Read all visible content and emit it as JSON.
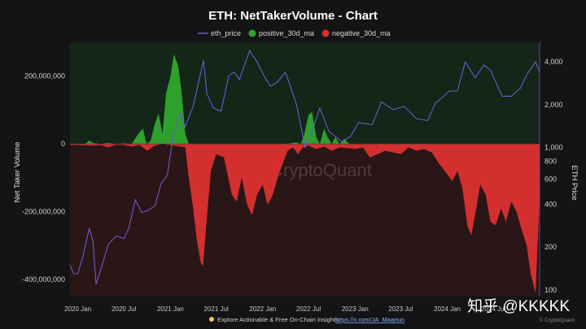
{
  "chart_data": {
    "type": "area",
    "title": "ETH: NetTakerVolume - Chart",
    "legend": {
      "placement": "top-center",
      "entries": [
        {
          "key": "eth_price",
          "label": "eth_price",
          "color": "#6a5acd",
          "style": "line"
        },
        {
          "key": "positive",
          "label": "positive_30d_ma",
          "color": "#2ea02c",
          "style": "dot"
        },
        {
          "key": "negative",
          "label": "negative_30d_ma",
          "color": "#d32f2f",
          "style": "dot"
        }
      ]
    },
    "x_axis": {
      "type": "date",
      "range": [
        "2019-12-01",
        "2024-12-31"
      ],
      "ticks": [
        {
          "date": "2020-01-01",
          "label": "2020 Jan"
        },
        {
          "date": "2020-07-01",
          "label": "2020 Jul"
        },
        {
          "date": "2021-01-01",
          "label": "2021 Jan"
        },
        {
          "date": "2021-07-01",
          "label": "2021 Jul"
        },
        {
          "date": "2022-01-01",
          "label": "2022 Jan"
        },
        {
          "date": "2022-07-01",
          "label": "2022 Jul"
        },
        {
          "date": "2023-01-01",
          "label": "2023 Jan"
        },
        {
          "date": "2023-07-01",
          "label": "2023 Jul"
        },
        {
          "date": "2024-01-01",
          "label": "2024 Jan"
        },
        {
          "date": "2024-07-01",
          "label": "2024 Jul"
        }
      ]
    },
    "y_left": {
      "label": "Net Taker Volume",
      "range": [
        -450000000,
        300000000
      ],
      "ticks": [
        {
          "value": 200000000,
          "label": "200,000,000"
        },
        {
          "value": 0,
          "label": "0"
        },
        {
          "value": -200000000,
          "label": "-200,000,000"
        },
        {
          "value": -400000000,
          "label": "-400,000,000"
        }
      ]
    },
    "y_right": {
      "label": "ETH Price",
      "scale": "log",
      "range": [
        90,
        5500
      ],
      "ticks": [
        {
          "value": 4000,
          "label": "4,000"
        },
        {
          "value": 2000,
          "label": "2,000"
        },
        {
          "value": 1000,
          "label": "1,000"
        },
        {
          "value": 800,
          "label": "800"
        },
        {
          "value": 600,
          "label": "600"
        },
        {
          "value": 400,
          "label": "400"
        },
        {
          "value": 200,
          "label": "200"
        },
        {
          "value": 100,
          "label": "100"
        }
      ]
    },
    "positive_30d_ma": [
      [
        "2019-12-01",
        0
      ],
      [
        "2020-01-01",
        0
      ],
      [
        "2020-02-01",
        1000000
      ],
      [
        "2020-02-15",
        10000000
      ],
      [
        "2020-03-01",
        3000000
      ],
      [
        "2020-04-01",
        0
      ],
      [
        "2020-05-01",
        3000000
      ],
      [
        "2020-06-01",
        0
      ],
      [
        "2020-07-01",
        2000000
      ],
      [
        "2020-08-01",
        0
      ],
      [
        "2020-09-01",
        35000000
      ],
      [
        "2020-09-15",
        45000000
      ],
      [
        "2020-09-25",
        10000000
      ],
      [
        "2020-10-01",
        0
      ],
      [
        "2020-10-15",
        10000000
      ],
      [
        "2020-11-01",
        60000000
      ],
      [
        "2020-11-15",
        90000000
      ],
      [
        "2020-12-01",
        30000000
      ],
      [
        "2020-12-15",
        150000000
      ],
      [
        "2021-01-01",
        200000000
      ],
      [
        "2021-01-15",
        265000000
      ],
      [
        "2021-02-01",
        230000000
      ],
      [
        "2021-02-15",
        150000000
      ],
      [
        "2021-03-01",
        30000000
      ],
      [
        "2021-03-15",
        0
      ],
      [
        "2021-04-01",
        0
      ],
      [
        "2021-09-01",
        0
      ],
      [
        "2022-04-01",
        0
      ],
      [
        "2022-05-15",
        5000000
      ],
      [
        "2022-06-01",
        0
      ],
      [
        "2022-06-15",
        30000000
      ],
      [
        "2022-07-01",
        85000000
      ],
      [
        "2022-07-15",
        95000000
      ],
      [
        "2022-08-01",
        20000000
      ],
      [
        "2022-08-15",
        0
      ],
      [
        "2022-09-01",
        45000000
      ],
      [
        "2022-09-15",
        20000000
      ],
      [
        "2022-10-01",
        0
      ],
      [
        "2022-10-15",
        20000000
      ],
      [
        "2022-11-01",
        0
      ],
      [
        "2022-11-20",
        15000000
      ],
      [
        "2022-12-10",
        0
      ],
      [
        "2024-12-31",
        0
      ]
    ],
    "negative_30d_ma": [
      [
        "2019-12-01",
        -3000000
      ],
      [
        "2020-01-01",
        -3000000
      ],
      [
        "2020-02-01",
        -4000000
      ],
      [
        "2020-03-01",
        -5000000
      ],
      [
        "2020-04-01",
        -3000000
      ],
      [
        "2020-05-01",
        -10000000
      ],
      [
        "2020-06-01",
        -2000000
      ],
      [
        "2020-07-01",
        -3000000
      ],
      [
        "2020-08-01",
        -8000000
      ],
      [
        "2020-09-01",
        -3000000
      ],
      [
        "2020-10-01",
        -20000000
      ],
      [
        "2020-11-01",
        -5000000
      ],
      [
        "2020-12-01",
        0
      ],
      [
        "2021-03-01",
        -10000000
      ],
      [
        "2021-03-15",
        -100000000
      ],
      [
        "2021-04-01",
        -190000000
      ],
      [
        "2021-04-15",
        -280000000
      ],
      [
        "2021-05-01",
        -350000000
      ],
      [
        "2021-05-10",
        -360000000
      ],
      [
        "2021-05-25",
        -220000000
      ],
      [
        "2021-06-10",
        -80000000
      ],
      [
        "2021-07-01",
        -30000000
      ],
      [
        "2021-08-01",
        -40000000
      ],
      [
        "2021-09-01",
        -150000000
      ],
      [
        "2021-09-20",
        -170000000
      ],
      [
        "2021-10-10",
        -100000000
      ],
      [
        "2021-11-01",
        -180000000
      ],
      [
        "2021-11-20",
        -210000000
      ],
      [
        "2021-12-10",
        -150000000
      ],
      [
        "2022-01-01",
        -120000000
      ],
      [
        "2022-01-20",
        -180000000
      ],
      [
        "2022-02-10",
        -150000000
      ],
      [
        "2022-03-01",
        -100000000
      ],
      [
        "2022-03-20",
        -60000000
      ],
      [
        "2022-04-10",
        -20000000
      ],
      [
        "2022-05-01",
        -10000000
      ],
      [
        "2022-05-20",
        -30000000
      ],
      [
        "2022-06-10",
        -10000000
      ],
      [
        "2022-07-01",
        -5000000
      ],
      [
        "2022-08-01",
        -15000000
      ],
      [
        "2022-09-01",
        -8000000
      ],
      [
        "2022-10-01",
        -20000000
      ],
      [
        "2022-11-01",
        -10000000
      ],
      [
        "2022-12-01",
        -12000000
      ],
      [
        "2023-01-01",
        -15000000
      ],
      [
        "2023-02-01",
        -10000000
      ],
      [
        "2023-03-01",
        -40000000
      ],
      [
        "2023-04-01",
        -30000000
      ],
      [
        "2023-05-01",
        -20000000
      ],
      [
        "2023-06-01",
        -25000000
      ],
      [
        "2023-07-01",
        -30000000
      ],
      [
        "2023-08-01",
        -10000000
      ],
      [
        "2023-09-01",
        -20000000
      ],
      [
        "2023-10-01",
        -15000000
      ],
      [
        "2023-11-01",
        -25000000
      ],
      [
        "2023-12-01",
        -60000000
      ],
      [
        "2024-01-01",
        -90000000
      ],
      [
        "2024-01-20",
        -110000000
      ],
      [
        "2024-02-10",
        -80000000
      ],
      [
        "2024-03-01",
        -130000000
      ],
      [
        "2024-03-20",
        -240000000
      ],
      [
        "2024-04-05",
        -270000000
      ],
      [
        "2024-04-20",
        -210000000
      ],
      [
        "2024-05-10",
        -120000000
      ],
      [
        "2024-06-01",
        -150000000
      ],
      [
        "2024-06-20",
        -230000000
      ],
      [
        "2024-07-10",
        -240000000
      ],
      [
        "2024-08-01",
        -190000000
      ],
      [
        "2024-08-20",
        -230000000
      ],
      [
        "2024-09-10",
        -170000000
      ],
      [
        "2024-10-01",
        -200000000
      ],
      [
        "2024-10-20",
        -250000000
      ],
      [
        "2024-11-10",
        -300000000
      ],
      [
        "2024-11-25",
        -380000000
      ],
      [
        "2024-12-15",
        -440000000
      ],
      [
        "2024-12-31",
        -160000000
      ]
    ],
    "eth_price": [
      [
        "2019-12-01",
        150
      ],
      [
        "2019-12-15",
        130
      ],
      [
        "2020-01-01",
        130
      ],
      [
        "2020-01-20",
        170
      ],
      [
        "2020-02-15",
        270
      ],
      [
        "2020-03-01",
        220
      ],
      [
        "2020-03-13",
        110
      ],
      [
        "2020-04-01",
        140
      ],
      [
        "2020-05-01",
        210
      ],
      [
        "2020-06-01",
        240
      ],
      [
        "2020-07-01",
        230
      ],
      [
        "2020-07-20",
        270
      ],
      [
        "2020-08-15",
        430
      ],
      [
        "2020-09-10",
        350
      ],
      [
        "2020-10-01",
        360
      ],
      [
        "2020-11-01",
        390
      ],
      [
        "2020-11-25",
        560
      ],
      [
        "2020-12-20",
        640
      ],
      [
        "2021-01-10",
        1150
      ],
      [
        "2021-02-10",
        1750
      ],
      [
        "2021-02-28",
        1400
      ],
      [
        "2021-04-01",
        1950
      ],
      [
        "2021-05-12",
        4100
      ],
      [
        "2021-05-25",
        2400
      ],
      [
        "2021-06-20",
        1900
      ],
      [
        "2021-07-20",
        1800
      ],
      [
        "2021-08-20",
        3200
      ],
      [
        "2021-09-10",
        3400
      ],
      [
        "2021-10-01",
        3000
      ],
      [
        "2021-11-10",
        4800
      ],
      [
        "2021-12-10",
        4000
      ],
      [
        "2022-01-10",
        3100
      ],
      [
        "2022-02-01",
        2700
      ],
      [
        "2022-03-01",
        2900
      ],
      [
        "2022-04-01",
        3400
      ],
      [
        "2022-05-15",
        2000
      ],
      [
        "2022-06-18",
        1000
      ],
      [
        "2022-07-15",
        1300
      ],
      [
        "2022-08-15",
        1900
      ],
      [
        "2022-09-20",
        1300
      ],
      [
        "2022-11-10",
        1100
      ],
      [
        "2022-12-15",
        1200
      ],
      [
        "2023-01-15",
        1500
      ],
      [
        "2023-03-10",
        1450
      ],
      [
        "2023-04-15",
        2100
      ],
      [
        "2023-06-01",
        1850
      ],
      [
        "2023-07-15",
        1950
      ],
      [
        "2023-09-01",
        1600
      ],
      [
        "2023-10-15",
        1550
      ],
      [
        "2023-11-15",
        2050
      ],
      [
        "2024-01-10",
        2500
      ],
      [
        "2024-02-10",
        2500
      ],
      [
        "2024-03-12",
        4000
      ],
      [
        "2024-04-20",
        3100
      ],
      [
        "2024-05-25",
        3800
      ],
      [
        "2024-06-20",
        3500
      ],
      [
        "2024-08-05",
        2300
      ],
      [
        "2024-09-10",
        2300
      ],
      [
        "2024-10-15",
        2600
      ],
      [
        "2024-11-12",
        3300
      ],
      [
        "2024-12-15",
        4000
      ],
      [
        "2024-12-31",
        3400
      ]
    ],
    "watermark": "CryptoQuant"
  },
  "footer": {
    "prefix": "Explore Actionable & Free On-Chain Insights:",
    "link": "https://x.com/JA_Maartun",
    "copyright": "© CryptoQuant"
  },
  "overlay_watermark": "知乎 @KKKKK",
  "colors": {
    "background": "#141416",
    "positive_zone": "#142617",
    "negative_zone": "#2a1616",
    "positive": "#2ea02c",
    "negative": "#d32f2f",
    "price": "#6a5acd"
  }
}
